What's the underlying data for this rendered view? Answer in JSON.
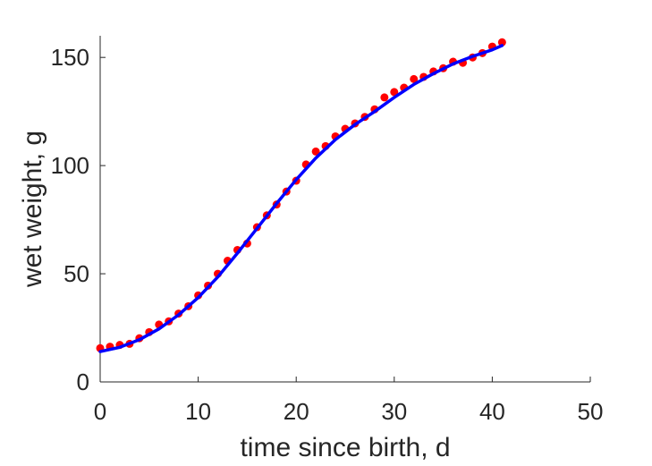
{
  "chart_data": {
    "type": "scatter",
    "xlabel": "time since birth, d",
    "ylabel": "wet weight, g",
    "xlim": [
      0,
      50
    ],
    "ylim": [
      0,
      160
    ],
    "xticks": [
      0,
      10,
      20,
      30,
      40,
      50
    ],
    "yticks": [
      0,
      50,
      100,
      150
    ],
    "grid": false,
    "box": false,
    "series": [
      {
        "kind": "scatter",
        "color": "#ff0000",
        "points": [
          [
            0,
            15.6
          ],
          [
            1,
            16.3
          ],
          [
            2,
            17.1
          ],
          [
            3,
            17.6
          ],
          [
            4,
            20.2
          ],
          [
            5,
            23.0
          ],
          [
            6,
            26.5
          ],
          [
            7,
            28.0
          ],
          [
            8,
            31.6
          ],
          [
            9,
            35.0
          ],
          [
            10,
            40.0
          ],
          [
            11,
            44.5
          ],
          [
            12,
            50.0
          ],
          [
            13,
            56.0
          ],
          [
            14,
            61.0
          ],
          [
            15,
            64.0
          ],
          [
            16,
            71.5
          ],
          [
            17,
            77.0
          ],
          [
            18,
            82.0
          ],
          [
            19,
            88.0
          ],
          [
            20,
            93.0
          ],
          [
            21,
            100.5
          ],
          [
            22,
            106.5
          ],
          [
            23,
            109.0
          ],
          [
            24,
            113.5
          ],
          [
            25,
            117.0
          ],
          [
            26,
            119.5
          ],
          [
            27,
            122.5
          ],
          [
            28,
            126.0
          ],
          [
            29,
            131.5
          ],
          [
            30,
            134.0
          ],
          [
            31,
            136.0
          ],
          [
            32,
            140.0
          ],
          [
            33,
            141.0
          ],
          [
            34,
            143.5
          ],
          [
            35,
            145.0
          ],
          [
            36,
            148.0
          ],
          [
            37,
            147.5
          ],
          [
            38,
            150.0
          ],
          [
            39,
            152.0
          ],
          [
            40,
            155.0
          ],
          [
            41,
            157.0
          ]
        ]
      },
      {
        "kind": "line",
        "color": "#0000ff",
        "points": [
          [
            0,
            14.0
          ],
          [
            2,
            16.0
          ],
          [
            4,
            19.5
          ],
          [
            6,
            24.5
          ],
          [
            8,
            31.0
          ],
          [
            10,
            39.0
          ],
          [
            12,
            48.5
          ],
          [
            14,
            59.5
          ],
          [
            16,
            71.0
          ],
          [
            18,
            82.5
          ],
          [
            20,
            93.5
          ],
          [
            22,
            103.5
          ],
          [
            24,
            112.0
          ],
          [
            26,
            119.0
          ],
          [
            28,
            125.0
          ],
          [
            30,
            131.5
          ],
          [
            32,
            137.5
          ],
          [
            34,
            142.5
          ],
          [
            36,
            147.0
          ],
          [
            38,
            150.5
          ],
          [
            40,
            153.5
          ],
          [
            41,
            155.5
          ]
        ]
      }
    ]
  }
}
